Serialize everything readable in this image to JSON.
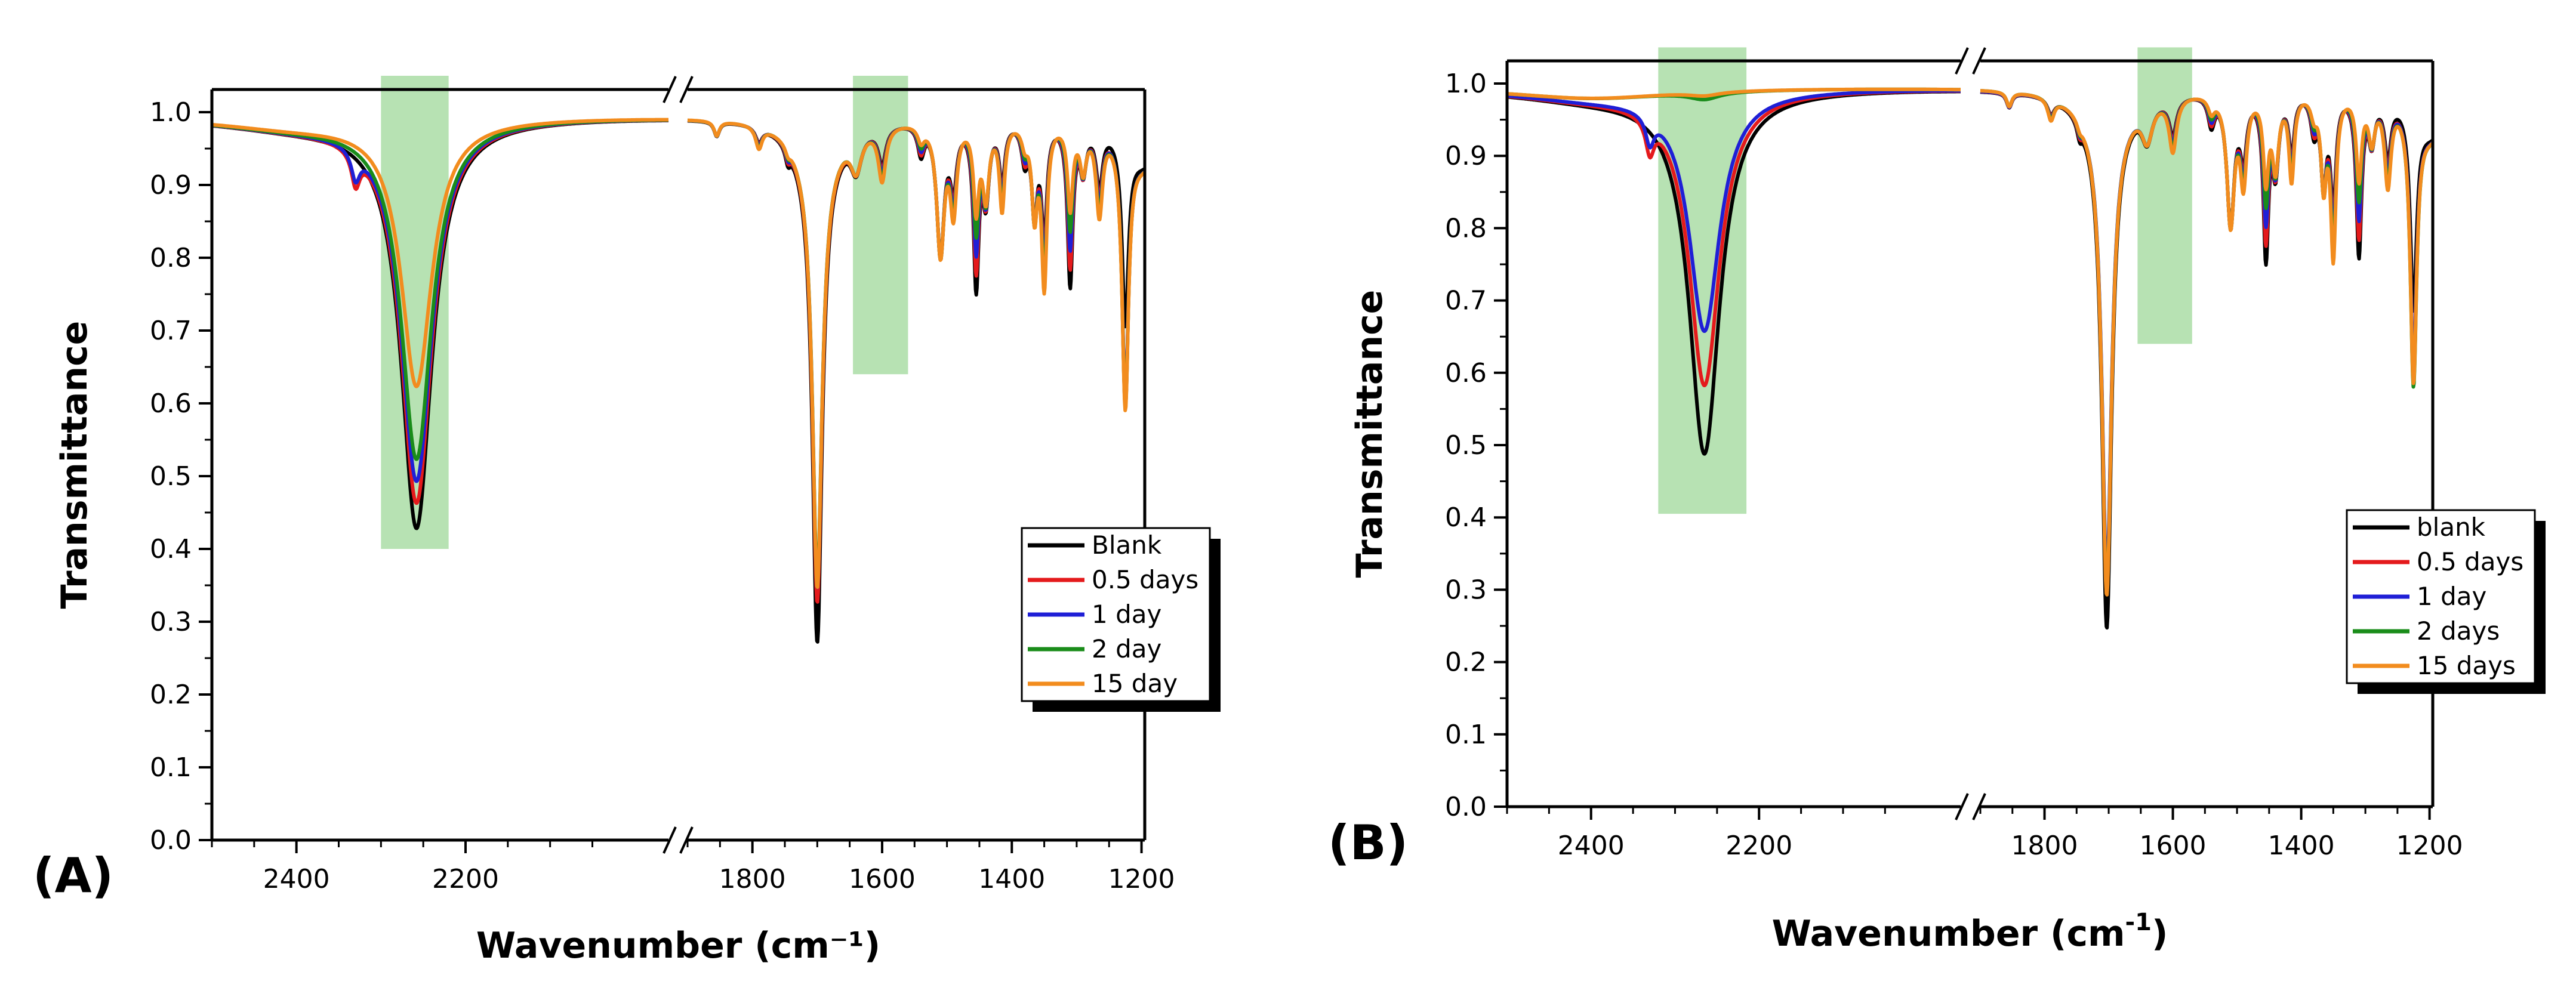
{
  "chart_data": [
    {
      "type": "line",
      "panel_label": "(A)",
      "xlabel": "Wavenumber (cm⁻¹)",
      "ylabel": "Transmittance",
      "ylim": [
        0,
        1.0
      ],
      "yticks": [
        "0.0",
        "0.1",
        "0.2",
        "0.3",
        "0.4",
        "0.5",
        "0.6",
        "0.7",
        "0.8",
        "0.9",
        "1.0"
      ],
      "x_segments": [
        [
          2500,
          1960
        ],
        [
          1900,
          1195
        ]
      ],
      "xticks": [
        "2400",
        "2200",
        "1800",
        "1600",
        "1400",
        "1200"
      ],
      "legend_position": "right",
      "highlight_regions": [
        {
          "x": [
            2300,
            2220
          ],
          "y": [
            0.4,
            1.05
          ]
        },
        {
          "x": [
            1645,
            1560
          ],
          "y": [
            0.64,
            1.05
          ]
        }
      ],
      "series": [
        {
          "name": "Blank",
          "color": "#000000",
          "peaks": [
            {
              "center": 2258,
              "value": 0.435
            },
            {
              "center": 1700,
              "value": 0.325
            },
            {
              "center": 1225,
              "value": 0.74
            }
          ]
        },
        {
          "name": "0.5 days",
          "color": "#e41a1c",
          "peaks": [
            {
              "center": 2258,
              "value": 0.47
            },
            {
              "center": 1700,
              "value": 0.38
            },
            {
              "center": 1225,
              "value": 0.63
            }
          ]
        },
        {
          "name": "1 day",
          "color": "#1f1fd6",
          "peaks": [
            {
              "center": 2258,
              "value": 0.5
            },
            {
              "center": 1700,
              "value": 0.4
            },
            {
              "center": 1225,
              "value": 0.64
            }
          ]
        },
        {
          "name": "2 day",
          "color": "#1a8c1a",
          "peaks": [
            {
              "center": 2258,
              "value": 0.53
            },
            {
              "center": 1700,
              "value": 0.41
            },
            {
              "center": 1225,
              "value": 0.63
            }
          ]
        },
        {
          "name": "15 day",
          "color": "#f28c1e",
          "peaks": [
            {
              "center": 2258,
              "value": 0.63
            },
            {
              "center": 1700,
              "value": 0.4
            },
            {
              "center": 1225,
              "value": 0.625
            }
          ]
        }
      ]
    },
    {
      "type": "line",
      "panel_label": "(B)",
      "xlabel": "Wavenumber (cm",
      "xlabel_sup": "-1",
      "xlabel_end": ")",
      "ylabel": "Transmittance",
      "ylim": [
        0,
        1.0
      ],
      "yticks": [
        "0.0",
        "0.1",
        "0.2",
        "0.3",
        "0.4",
        "0.5",
        "0.6",
        "0.7",
        "0.8",
        "0.9",
        "1.0"
      ],
      "x_segments": [
        [
          2500,
          1960
        ],
        [
          1900,
          1195
        ]
      ],
      "xticks": [
        "2400",
        "2200",
        "1800",
        "1600",
        "1400",
        "1200"
      ],
      "legend_position": "right",
      "highlight_regions": [
        {
          "x": [
            2320,
            2215
          ],
          "y": [
            0.405,
            1.06
          ]
        },
        {
          "x": [
            1655,
            1570
          ],
          "y": [
            0.64,
            1.06
          ]
        }
      ],
      "series": [
        {
          "name": "blank",
          "color": "#000000",
          "peaks": [
            {
              "center": 2265,
              "value": 0.495
            },
            {
              "center": 1703,
              "value": 0.3
            },
            {
              "center": 1225,
              "value": 0.72
            }
          ]
        },
        {
          "name": "0.5 days",
          "color": "#e41a1c",
          "peaks": [
            {
              "center": 2265,
              "value": 0.59
            },
            {
              "center": 1703,
              "value": 0.36
            },
            {
              "center": 1225,
              "value": 0.64
            }
          ]
        },
        {
          "name": "1 day",
          "color": "#1f1fd6",
          "peaks": [
            {
              "center": 2265,
              "value": 0.665
            },
            {
              "center": 1703,
              "value": 0.37
            },
            {
              "center": 1225,
              "value": 0.64
            }
          ]
        },
        {
          "name": "2 days",
          "color": "#1a8c1a",
          "peaks": [
            {
              "center": 2265,
              "value": 0.985
            },
            {
              "center": 1703,
              "value": 0.35
            },
            {
              "center": 1225,
              "value": 0.615
            }
          ]
        },
        {
          "name": "15 days",
          "color": "#f28c1e",
          "peaks": [
            {
              "center": 2265,
              "value": 0.99
            },
            {
              "center": 1703,
              "value": 0.345
            },
            {
              "center": 1225,
              "value": 0.62
            }
          ]
        }
      ]
    }
  ]
}
